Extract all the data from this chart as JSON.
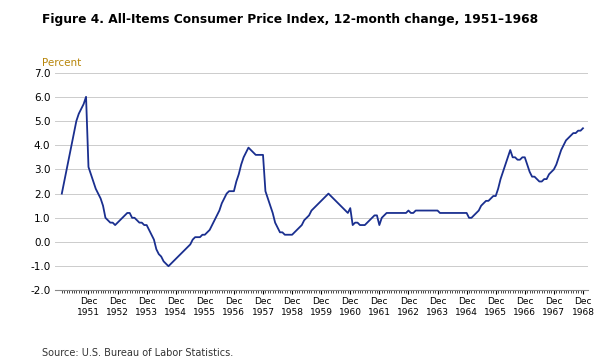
{
  "title": "Figure 4. All-Items Consumer Price Index, 12-month change, 1951–1968",
  "ylabel": "Percent",
  "source": "Source: U.S. Bureau of Labor Statistics.",
  "ylim": [
    -2.0,
    7.0
  ],
  "yticks": [
    -2.0,
    -1.0,
    0.0,
    1.0,
    2.0,
    3.0,
    4.0,
    5.0,
    6.0,
    7.0
  ],
  "line_color": "#1a2f8f",
  "line_width": 1.3,
  "background_color": "#ffffff",
  "grid_color": "#cccccc",
  "title_color": "#000000",
  "ylabel_color": "#b8860b",
  "cpi_data": [
    2.0,
    2.5,
    3.0,
    3.5,
    4.0,
    4.5,
    5.0,
    5.3,
    5.5,
    5.7,
    6.0,
    3.1,
    2.8,
    2.5,
    2.2,
    2.0,
    1.8,
    1.5,
    1.0,
    0.9,
    0.8,
    0.8,
    0.7,
    0.8,
    0.9,
    1.0,
    1.1,
    1.2,
    1.2,
    1.0,
    1.0,
    0.9,
    0.8,
    0.8,
    0.7,
    0.7,
    0.5,
    0.3,
    0.1,
    -0.3,
    -0.5,
    -0.6,
    -0.8,
    -0.9,
    -1.0,
    -0.9,
    -0.8,
    -0.7,
    -0.6,
    -0.5,
    -0.4,
    -0.3,
    -0.2,
    -0.1,
    0.1,
    0.2,
    0.2,
    0.2,
    0.3,
    0.3,
    0.4,
    0.5,
    0.7,
    0.9,
    1.1,
    1.3,
    1.6,
    1.8,
    2.0,
    2.1,
    2.1,
    2.1,
    2.5,
    2.8,
    3.2,
    3.5,
    3.7,
    3.9,
    3.8,
    3.7,
    3.6,
    3.6,
    3.6,
    3.6,
    2.1,
    1.8,
    1.5,
    1.2,
    0.8,
    0.6,
    0.4,
    0.4,
    0.3,
    0.3,
    0.3,
    0.3,
    0.4,
    0.5,
    0.6,
    0.7,
    0.9,
    1.0,
    1.1,
    1.3,
    1.4,
    1.5,
    1.6,
    1.7,
    1.8,
    1.9,
    2.0,
    1.9,
    1.8,
    1.7,
    1.6,
    1.5,
    1.4,
    1.3,
    1.2,
    1.4,
    0.7,
    0.8,
    0.8,
    0.7,
    0.7,
    0.7,
    0.8,
    0.9,
    1.0,
    1.1,
    1.1,
    0.7,
    1.0,
    1.1,
    1.2,
    1.2,
    1.2,
    1.2,
    1.2,
    1.2,
    1.2,
    1.2,
    1.2,
    1.3,
    1.2,
    1.2,
    1.3,
    1.3,
    1.3,
    1.3,
    1.3,
    1.3,
    1.3,
    1.3,
    1.3,
    1.3,
    1.2,
    1.2,
    1.2,
    1.2,
    1.2,
    1.2,
    1.2,
    1.2,
    1.2,
    1.2,
    1.2,
    1.2,
    1.0,
    1.0,
    1.1,
    1.2,
    1.3,
    1.5,
    1.6,
    1.7,
    1.7,
    1.8,
    1.9,
    1.9,
    2.2,
    2.6,
    2.9,
    3.2,
    3.5,
    3.8,
    3.5,
    3.5,
    3.4,
    3.4,
    3.5,
    3.5,
    3.2,
    2.9,
    2.7,
    2.7,
    2.6,
    2.5,
    2.5,
    2.6,
    2.6,
    2.8,
    2.9,
    3.0,
    3.2,
    3.5,
    3.8,
    4.0,
    4.2,
    4.3,
    4.4,
    4.5,
    4.5,
    4.6,
    4.6,
    4.7
  ]
}
